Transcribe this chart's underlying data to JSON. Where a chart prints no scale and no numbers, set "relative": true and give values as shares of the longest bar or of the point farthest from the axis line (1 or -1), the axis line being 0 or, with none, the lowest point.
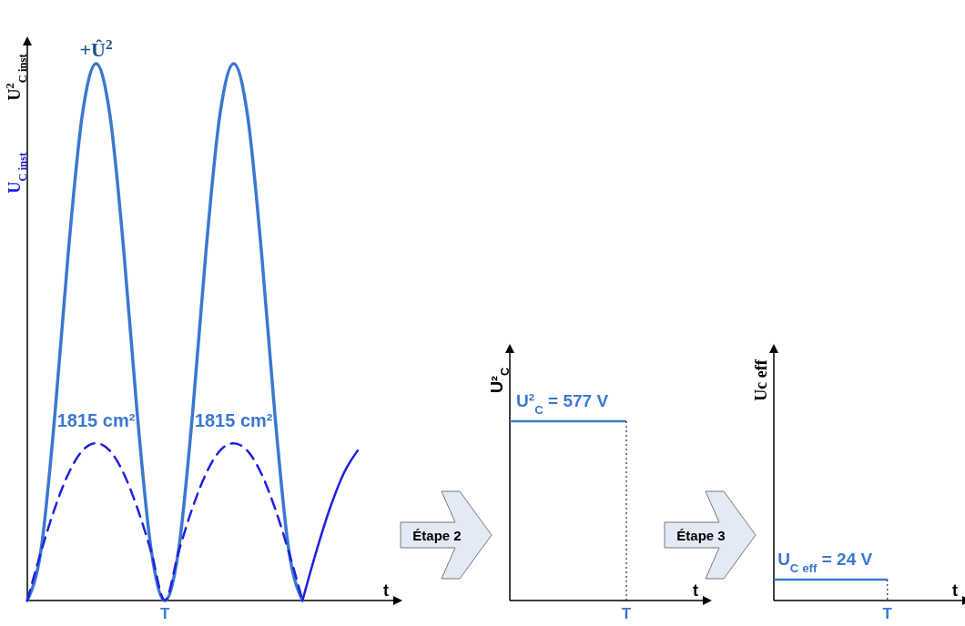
{
  "chart_data": [
    {
      "type": "line",
      "relative": true,
      "categories": [
        null,
        null,
        null,
        null,
        null,
        null,
        null,
        null,
        null,
        null,
        null,
        null,
        null,
        null,
        null,
        null,
        null,
        null,
        null,
        null,
        null,
        null,
        null,
        null,
        null
      ],
      "xlabel": "t",
      "ylabel": "U$_{C inst}$",
      "y2label": "U$^{2}$$_{C inst}$",
      "annotations": [
        {
          "text": "+Û$^{2}$",
          "y": 1
        },
        "1815 cm²",
        "1815 cm²",
        {
          "text": "T",
          "y": 0
        }
      ],
      "series": [
        {
          "color": "#3a78d0",
          "line_style": "solid",
          "values": [
            0,
            0.095,
            0.345,
            0.655,
            0.905,
            1,
            0.905,
            0.655,
            0.345,
            0.095,
            0,
            0.095,
            0.345,
            0.655,
            0.905,
            1,
            0.905,
            0.655,
            0.345,
            0.095,
            0,
            null,
            null,
            null,
            null
          ]
        },
        {
          "color": "#1f1fe0",
          "line_style": "dashed",
          "values": [
            0,
            0.091,
            0.172,
            0.237,
            0.279,
            0.293,
            0.279,
            0.237,
            0.172,
            0.091,
            0,
            0.091,
            0.172,
            0.237,
            0.279,
            0.293,
            0.279,
            0.237,
            0.172,
            0.091,
            0,
            null,
            null,
            null,
            null
          ]
        },
        {
          "color": "#1f1fe0",
          "line_style": "solid",
          "values": [
            null,
            null,
            null,
            null,
            null,
            null,
            null,
            null,
            null,
            null,
            null,
            null,
            null,
            null,
            null,
            null,
            null,
            null,
            null,
            null,
            0,
            0.091,
            0.172,
            0.237,
            0.279
          ]
        }
      ]
    },
    {
      "type": "other",
      "xlabel": "t",
      "ylabel": "U²$_{C}$",
      "annotations": [
        "Étape 2",
        "U²$_{C}$ = 577 V",
        "T"
      ]
    },
    {
      "type": "other",
      "xlabel": "t",
      "ylabel": "Uc eff",
      "annotations": [
        "Étape 3",
        "U$_{C eff}$ = 24 V",
        "T"
      ]
    }
  ]
}
